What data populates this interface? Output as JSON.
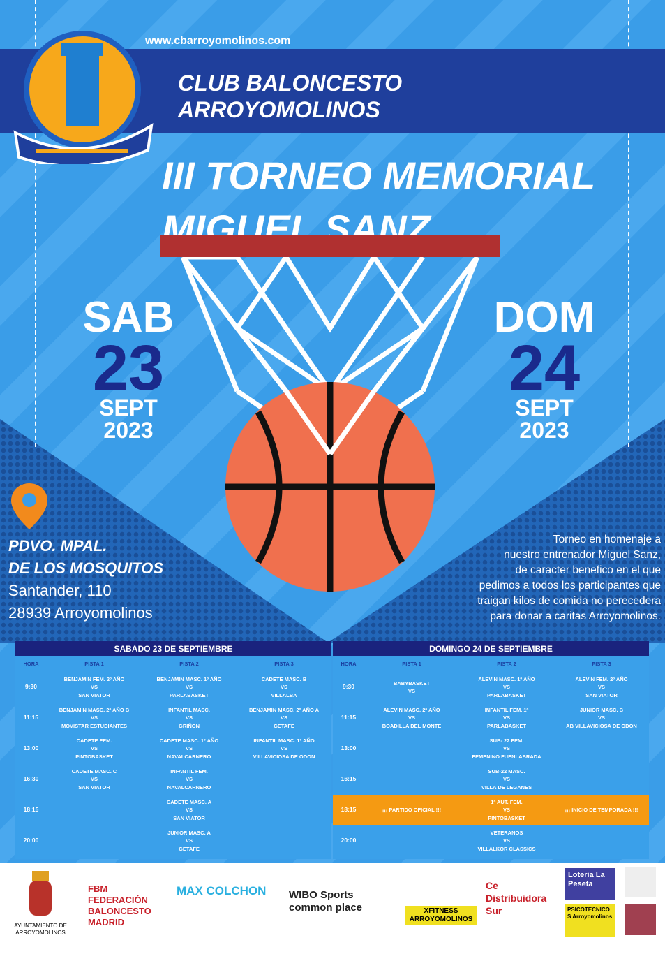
{
  "header": {
    "url": "www.cbarroyomolinos.com",
    "club_line1": "CLUB BALONCESTO",
    "club_line2": "ARROYOMOLINOS",
    "title_line1": "III TORNEO MEMORIAL",
    "title_line2": "MIGUEL SANZ",
    "logo_text": "CLUB BALONCESTO ARROYOMOLINOS"
  },
  "days": [
    {
      "day": "SAB",
      "num": "23",
      "month": "SEPT",
      "year": "2023"
    },
    {
      "day": "DOM",
      "num": "24",
      "month": "SEPT",
      "year": "2023"
    }
  ],
  "venue": {
    "name1": "PDVO. MPAL.",
    "name2": "DE LOS MOSQUITOS",
    "street": "Santander, 110",
    "city": "28939 Arroyomolinos",
    "icon": "location-pin-icon"
  },
  "description": [
    "Torneo en homenaje a",
    "nuestro entrenador Miguel Sanz,",
    "de caracter benefico en el que",
    "pedimos a todos los participantes que",
    "traigan kilos de comida no perecedera",
    "para donar a caritas Arroyomolinos."
  ],
  "colors": {
    "background": "#3a9de8",
    "band": "#1f3f9c",
    "navy": "#1a237e",
    "highlight": "#f59a12",
    "ball": "#f0704e",
    "rim": "#b03030"
  },
  "schedule": [
    {
      "title": "SABADO 23 DE SEPTIEMBRE",
      "columns": [
        "HORA",
        "PISTA 1",
        "PISTA 2",
        "PISTA 3"
      ],
      "rows": [
        {
          "time": "9:30",
          "cells": [
            [
              "BENJAMIN FEM. 2º AÑO",
              "VS",
              "SAN VIATOR"
            ],
            [
              "BENJAMIN MASC. 1º AÑO",
              "VS",
              "PARLABASKET"
            ],
            [
              "CADETE MASC. B",
              "VS",
              "VILLALBA"
            ]
          ]
        },
        {
          "time": "11:15",
          "cells": [
            [
              "BENJAMIN MASC. 2º AÑO B",
              "VS",
              "MOVISTAR ESTUDIANTES"
            ],
            [
              "INFANTIL MASC.",
              "VS",
              "GRIÑON"
            ],
            [
              "BENJAMIN MASC. 2º AÑO A",
              "VS",
              "GETAFE"
            ]
          ]
        },
        {
          "time": "13:00",
          "cells": [
            [
              "CADETE FEM.",
              "VS",
              "PINTOBASKET"
            ],
            [
              "CADETE MASC. 1º AÑO",
              "VS",
              "NAVALCARNERO"
            ],
            [
              "INFANTIL MASC. 1º AÑO",
              "VS",
              "VILLAVICIOSA DE ODON"
            ]
          ]
        },
        {
          "time": "16:30",
          "cells": [
            [
              "CADETE MASC. C",
              "VS",
              "SAN VIATOR"
            ],
            [
              "INFANTIL FEM.",
              "VS",
              "NAVALCARNERO"
            ],
            []
          ]
        },
        {
          "time": "18:15",
          "cells": [
            [],
            [
              "CADETE MASC. A",
              "VS",
              "SAN VIATOR"
            ],
            []
          ]
        },
        {
          "time": "20:00",
          "cells": [
            [],
            [
              "JUNIOR MASC. A",
              "VS",
              "GETAFE"
            ],
            []
          ]
        }
      ]
    },
    {
      "title": "DOMINGO 24 DE SEPTIEMBRE",
      "columns": [
        "HORA",
        "PISTA 1",
        "PISTA 2",
        "PISTA 3"
      ],
      "rows": [
        {
          "time": "9:30",
          "cells": [
            [
              "BABYBASKET",
              "VS"
            ],
            [
              "ALEVIN MASC. 1º AÑO",
              "VS",
              "PARLABASKET"
            ],
            [
              "ALEVIN FEM. 2º AÑO",
              "VS",
              "SAN VIATOR"
            ]
          ]
        },
        {
          "time": "11:15",
          "cells": [
            [
              "ALEVIN MASC. 2º AÑO",
              "VS",
              "BOADILLA DEL MONTE"
            ],
            [
              "INFANTIL FEM. 1º",
              "VS",
              "PARLABASKET"
            ],
            [
              "JUNIOR MASC. B",
              "VS",
              "AB VILLAVICIOSA DE ODON"
            ]
          ]
        },
        {
          "time": "13:00",
          "cells": [
            [],
            [
              "SUB- 22 FEM.",
              "VS",
              "FEMENINO FUENLABRADA"
            ],
            []
          ]
        },
        {
          "time": "16:15",
          "cells": [
            [],
            [
              "SUB-22 MASC.",
              "VS",
              "VILLA DE LEGANES"
            ],
            []
          ]
        },
        {
          "time": "18:15",
          "highlight": true,
          "cells": [
            [
              "¡¡¡ PARTIDO OFICIAL !!!"
            ],
            [
              "1º AUT. FEM.",
              "VS",
              "PINTOBASKET"
            ],
            [
              "¡¡¡ INICIO DE TEMPORADA !!!"
            ]
          ]
        },
        {
          "time": "20:00",
          "cells": [
            [],
            [
              "VETERANOS",
              "VS",
              "VILLALKOR CLASSICS"
            ],
            []
          ]
        }
      ]
    }
  ],
  "sponsors": [
    "AYUNTAMIENTO DE ARROYOMOLINOS",
    "FBM FEDERACIÓN BALONCESTO MADRID",
    "MAX COLCHON",
    "WIBO Sports common place",
    "XFITNESS ARROYOMOLINOS",
    "Ce Distribuidora Sur",
    "Lotería La Peseta",
    "PSICOTECNICOS Arroyomolinos"
  ]
}
